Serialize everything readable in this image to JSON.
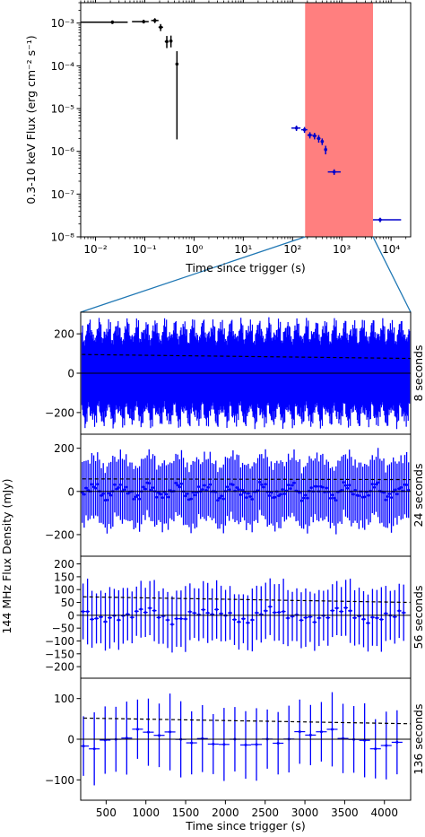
{
  "chart_data": [
    {
      "type": "scatter",
      "scale": "log-log",
      "xlabel": "Time since trigger (s)",
      "ylabel": "0.3-10 keV Flux (erg cm⁻² s⁻¹)",
      "xlim": [
        0.005,
        25000
      ],
      "ylim": [
        1e-08,
        0.003
      ],
      "x_ticks": [
        0.01,
        0.1,
        1,
        10,
        100,
        1000,
        10000
      ],
      "x_tick_labels": [
        "10⁻²",
        "10⁻¹",
        "10⁰",
        "10¹",
        "10²",
        "10³",
        "10⁴"
      ],
      "y_ticks": [
        1e-08,
        1e-07,
        1e-06,
        1e-05,
        0.0001,
        0.001
      ],
      "y_tick_labels": [
        "10⁻⁸",
        "10⁻⁷",
        "10⁻⁶",
        "10⁻⁵",
        "10⁻⁴",
        "10⁻³"
      ],
      "highlight_band": {
        "x_range": [
          180,
          4300
        ],
        "color": "#ff7f7f"
      },
      "series": [
        {
          "color": "#000000",
          "points": [
            {
              "x": 0.022,
              "xlo": 0.005,
              "xhi": 0.045,
              "y": 0.00105,
              "ylo": 0.00095,
              "yhi": 0.00115
            },
            {
              "x": 0.095,
              "xlo": 0.055,
              "xhi": 0.12,
              "y": 0.00108,
              "ylo": 0.00098,
              "yhi": 0.0012
            },
            {
              "x": 0.16,
              "xlo": 0.135,
              "xhi": 0.19,
              "y": 0.00115,
              "ylo": 0.001,
              "yhi": 0.0013
            },
            {
              "x": 0.21,
              "xlo": 0.19,
              "xhi": 0.235,
              "y": 0.0008,
              "ylo": 0.00065,
              "yhi": 0.00095
            },
            {
              "x": 0.28,
              "xlo": 0.255,
              "xhi": 0.305,
              "y": 0.00037,
              "ylo": 0.00026,
              "yhi": 0.0005
            },
            {
              "x": 0.34,
              "xlo": 0.315,
              "xhi": 0.36,
              "y": 0.00038,
              "ylo": 0.00027,
              "yhi": 0.00051
            },
            {
              "x": 0.45,
              "xlo": 0.43,
              "xhi": 0.47,
              "y": 0.00011,
              "ylo": 1.9e-06,
              "yhi": 0.00022
            }
          ]
        },
        {
          "color": "#0000cc",
          "points": [
            {
              "x": 120,
              "xlo": 95,
              "xhi": 145,
              "y": 3.5e-06,
              "ylo": 3e-06,
              "yhi": 4e-06
            },
            {
              "x": 175,
              "xlo": 150,
              "xhi": 200,
              "y": 3.2e-06,
              "ylo": 2.7e-06,
              "yhi": 3.7e-06
            },
            {
              "x": 225,
              "xlo": 200,
              "xhi": 255,
              "y": 2.4e-06,
              "ylo": 2e-06,
              "yhi": 2.8e-06
            },
            {
              "x": 280,
              "xlo": 255,
              "xhi": 310,
              "y": 2.3e-06,
              "ylo": 1.9e-06,
              "yhi": 2.7e-06
            },
            {
              "x": 340,
              "xlo": 310,
              "xhi": 370,
              "y": 2e-06,
              "ylo": 1.6e-06,
              "yhi": 2.4e-06
            },
            {
              "x": 400,
              "xlo": 370,
              "xhi": 430,
              "y": 1.7e-06,
              "ylo": 1.4e-06,
              "yhi": 2e-06
            },
            {
              "x": 470,
              "xlo": 440,
              "xhi": 500,
              "y": 1.1e-06,
              "ylo": 8.5e-07,
              "yhi": 1.35e-06
            },
            {
              "x": 700,
              "xlo": 520,
              "xhi": 950,
              "y": 3.3e-07,
              "ylo": 2.8e-07,
              "yhi": 3.8e-07
            },
            {
              "x": 6000,
              "xlo": 4300,
              "xhi": 16000,
              "y": 2.5e-08,
              "ylo": 2.2e-08,
              "yhi": 2.8e-08
            }
          ]
        }
      ]
    },
    {
      "type": "scatter",
      "panel_label": "8 seconds",
      "bin_seconds": 8,
      "xlabel": "",
      "ylabel": "144 MHz Flux Density (mJy)",
      "xlim": [
        180,
        4330
      ],
      "ylim": [
        -310,
        310
      ],
      "y_ticks": [
        -200,
        0,
        200
      ],
      "y_tick_labels": [
        "−200",
        "0",
        "200"
      ],
      "xstart": 195,
      "error_base": 130,
      "dashed_limit": {
        "start": 95,
        "end": 75
      },
      "color": "#0000ff"
    },
    {
      "type": "scatter",
      "panel_label": "24 seconds",
      "bin_seconds": 24,
      "xlabel": "",
      "ylabel": "",
      "xlim": [
        180,
        4330
      ],
      "ylim": [
        -300,
        265
      ],
      "y_ticks": [
        -200,
        0,
        200
      ],
      "y_tick_labels": [
        "−200",
        "0",
        "200"
      ],
      "xstart": 200,
      "error_base": 90,
      "dashed_limit": {
        "start": 58,
        "end": 55
      },
      "color": "#0000ff"
    },
    {
      "type": "scatter",
      "panel_label": "56 seconds",
      "bin_seconds": 56,
      "xlabel": "",
      "ylabel": "",
      "xlim": [
        180,
        4330
      ],
      "ylim": [
        -245,
        230
      ],
      "y_ticks": [
        -200,
        -150,
        -100,
        -50,
        0,
        50,
        100,
        150,
        200
      ],
      "y_tick_labels": [
        "−200",
        "−150",
        "−100",
        "−50",
        "0",
        "50",
        "100",
        "150",
        "200"
      ],
      "xstart": 210,
      "error_base": 68,
      "dashed_limit": {
        "start": 72,
        "end": 50
      },
      "color": "#0000ff"
    },
    {
      "type": "scatter",
      "panel_label": "136 seconds",
      "bin_seconds": 136,
      "xlabel": "Time since trigger (s)",
      "ylabel": "",
      "xlim": [
        180,
        4330
      ],
      "ylim": [
        -150,
        150
      ],
      "x_ticks": [
        500,
        1000,
        1500,
        2000,
        2500,
        3000,
        3500,
        4000
      ],
      "x_tick_labels": [
        "500",
        "1000",
        "1500",
        "2000",
        "2500",
        "3000",
        "3500",
        "4000"
      ],
      "y_ticks": [
        -100,
        0,
        100
      ],
      "y_tick_labels": [
        "−100",
        "0",
        "100"
      ],
      "xstart": 215,
      "error_base": 52,
      "dashed_limit": {
        "start": 52,
        "end": 38
      },
      "color": "#0000ff"
    }
  ]
}
